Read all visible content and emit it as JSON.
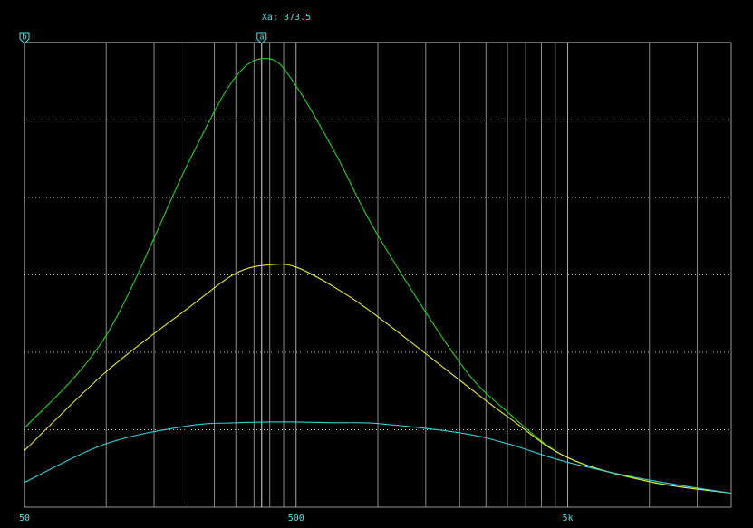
{
  "chart_data": {
    "type": "line",
    "readout": "Xa: 373.5",
    "log_x": true,
    "xlim": [
      50,
      20000
    ],
    "xticks": [
      50,
      500,
      {
        "value": 5000,
        "label": "5k"
      }
    ],
    "xgrid": [
      100,
      150,
      200,
      250,
      300,
      350,
      400,
      450,
      1000,
      1500,
      2000,
      2500,
      3000,
      3500,
      4000,
      4500,
      10000,
      15000
    ],
    "ylim": [
      0,
      6
    ],
    "ygrid": [
      1,
      2,
      3,
      4,
      5
    ],
    "markers": [
      {
        "label": "b",
        "x": 50
      },
      {
        "label": "a",
        "x": 373.5
      }
    ],
    "x": [
      50,
      100,
      200,
      300,
      400,
      500,
      700,
      1000,
      2000,
      3000,
      5000,
      10000,
      20000
    ],
    "series": [
      {
        "color": "#20d020",
        "values": [
          1.02,
          2.22,
          4.44,
          5.56,
          5.79,
          5.44,
          4.56,
          3.51,
          1.87,
          1.23,
          0.64,
          0.33,
          0.18
        ]
      },
      {
        "color": "#e8e830",
        "values": [
          0.73,
          1.75,
          2.57,
          3.02,
          3.13,
          3.1,
          2.83,
          2.46,
          1.64,
          1.17,
          0.64,
          0.33,
          0.18
        ]
      },
      {
        "color": "#30d0d8",
        "values": [
          0.32,
          0.82,
          1.05,
          1.09,
          1.1,
          1.1,
          1.09,
          1.08,
          0.96,
          0.82,
          0.58,
          0.35,
          0.18
        ]
      }
    ]
  }
}
